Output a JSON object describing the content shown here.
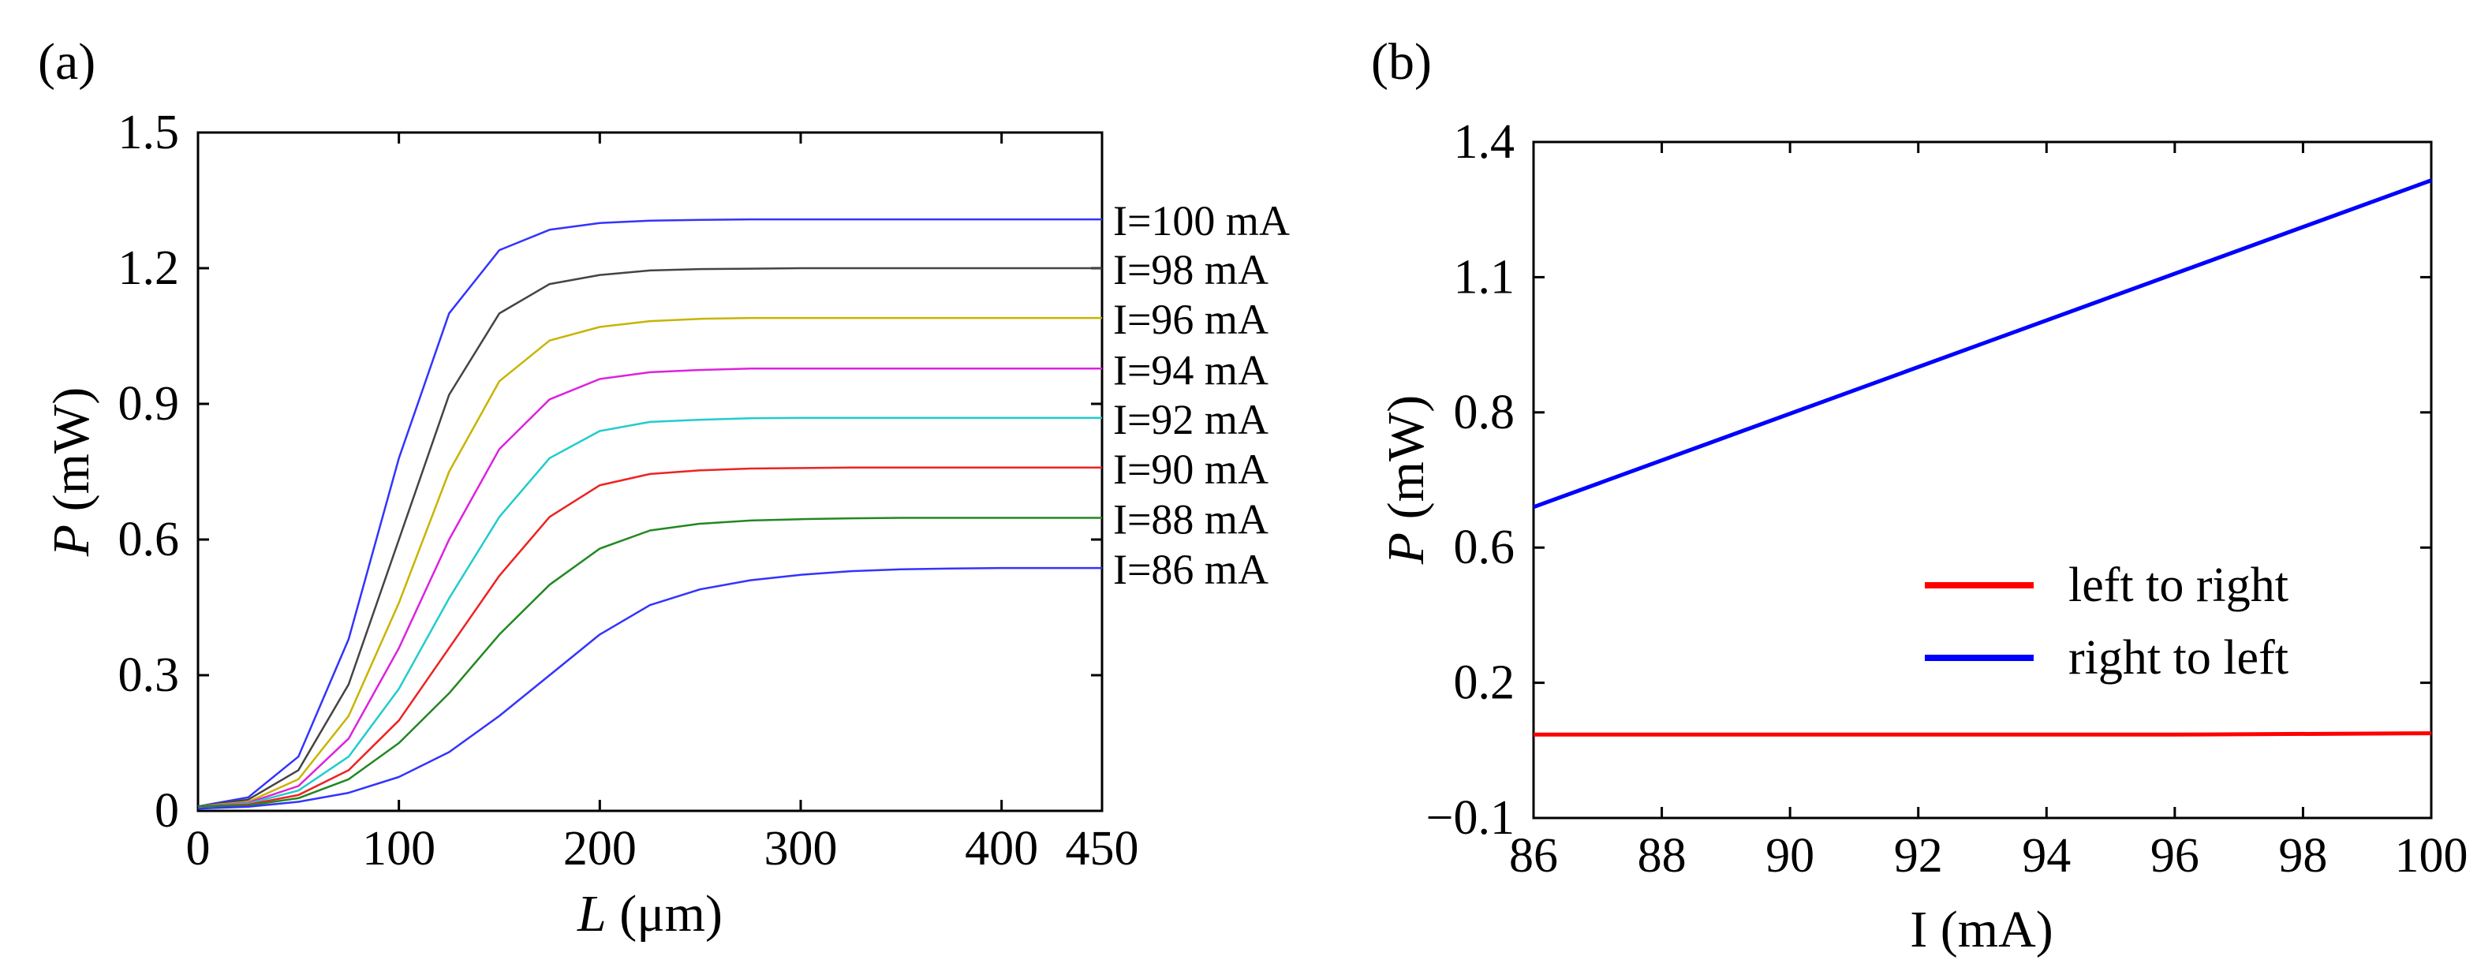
{
  "chart_data": [
    {
      "panel_label": "(a)",
      "type": "line",
      "title": "",
      "xlabel_var": "L",
      "xlabel_unit": " (μm)",
      "ylabel_var": "P",
      "ylabel_unit": " (mW)",
      "xlim": [
        0,
        450
      ],
      "ylim": [
        0,
        1.5
      ],
      "xticks": [
        0,
        100,
        200,
        300,
        400,
        450
      ],
      "xtick_labels": [
        "0",
        "100",
        "200",
        "300",
        "400",
        "450"
      ],
      "yticks": [
        0,
        0.3,
        0.6,
        0.9,
        1.2,
        1.5
      ],
      "ytick_labels": [
        "0",
        "0.3",
        "0.6",
        "0.9",
        "1.2",
        "1.5"
      ],
      "grid": false,
      "legend": "series labels at right end of each curve",
      "x": [
        0,
        25,
        50,
        75,
        100,
        125,
        150,
        175,
        200,
        225,
        250,
        275,
        300,
        325,
        350,
        375,
        400,
        425,
        450
      ],
      "series": [
        {
          "name": "I=100 mA",
          "color": "#3333ff",
          "values": [
            0.01,
            0.03,
            0.12,
            0.38,
            0.78,
            1.1,
            1.24,
            1.285,
            1.3,
            1.305,
            1.307,
            1.308,
            1.308,
            1.308,
            1.308,
            1.308,
            1.308,
            1.308,
            1.308
          ]
        },
        {
          "name": "I=98 mA",
          "color": "#444444",
          "values": [
            0.01,
            0.025,
            0.09,
            0.28,
            0.6,
            0.92,
            1.1,
            1.165,
            1.185,
            1.195,
            1.198,
            1.199,
            1.2,
            1.2,
            1.2,
            1.2,
            1.2,
            1.2,
            1.2
          ]
        },
        {
          "name": "I=96 mA",
          "color": "#c8b400",
          "values": [
            0.01,
            0.02,
            0.07,
            0.21,
            0.46,
            0.75,
            0.95,
            1.04,
            1.07,
            1.083,
            1.088,
            1.09,
            1.09,
            1.09,
            1.09,
            1.09,
            1.09,
            1.09,
            1.09
          ]
        },
        {
          "name": "I=94 mA",
          "color": "#dd22dd",
          "values": [
            0.01,
            0.018,
            0.055,
            0.16,
            0.36,
            0.6,
            0.8,
            0.91,
            0.955,
            0.97,
            0.975,
            0.978,
            0.978,
            0.978,
            0.978,
            0.978,
            0.978,
            0.978,
            0.978
          ]
        },
        {
          "name": "I=92 mA",
          "color": "#22cccc",
          "values": [
            0.01,
            0.016,
            0.045,
            0.12,
            0.27,
            0.47,
            0.65,
            0.78,
            0.84,
            0.86,
            0.865,
            0.868,
            0.869,
            0.869,
            0.869,
            0.869,
            0.869,
            0.869,
            0.869
          ]
        },
        {
          "name": "I=90 mA",
          "color": "#ee2222",
          "values": [
            0.01,
            0.014,
            0.035,
            0.09,
            0.2,
            0.36,
            0.52,
            0.65,
            0.72,
            0.745,
            0.753,
            0.757,
            0.758,
            0.759,
            0.759,
            0.759,
            0.759,
            0.759,
            0.759
          ]
        },
        {
          "name": "I=88 mA",
          "color": "#228822",
          "values": [
            0.01,
            0.012,
            0.028,
            0.07,
            0.15,
            0.26,
            0.39,
            0.5,
            0.58,
            0.62,
            0.635,
            0.642,
            0.645,
            0.647,
            0.648,
            0.648,
            0.648,
            0.648,
            0.648
          ]
        },
        {
          "name": "I=86 mA",
          "color": "#3333ff",
          "values": [
            0.005,
            0.009,
            0.02,
            0.04,
            0.075,
            0.13,
            0.21,
            0.3,
            0.39,
            0.455,
            0.49,
            0.51,
            0.522,
            0.53,
            0.534,
            0.536,
            0.537,
            0.537,
            0.537
          ]
        }
      ]
    },
    {
      "panel_label": "(b)",
      "type": "line",
      "title": "",
      "xlabel": "I (mA)",
      "ylabel_var": "P",
      "ylabel_unit": " (mW)",
      "xlim": [
        86,
        100
      ],
      "ylim": [
        -0.1,
        1.4
      ],
      "xticks": [
        86,
        88,
        90,
        92,
        94,
        96,
        98,
        100
      ],
      "xtick_labels": [
        "86",
        "88",
        "90",
        "92",
        "94",
        "96",
        "98",
        "100"
      ],
      "yticks": [
        -0.1,
        0.2,
        0.6,
        0.8,
        1.1,
        1.4
      ],
      "ytick_labels": [
        "−0.1",
        "0.2",
        "0.6",
        "0.8",
        "1.1",
        "1.4"
      ],
      "grid": false,
      "legend": "lower-right",
      "series": [
        {
          "name": "left to right",
          "color": "#ff0000",
          "x": [
            86,
            96,
            100
          ],
          "values": [
            0.085,
            0.085,
            0.088
          ]
        },
        {
          "name": "right to left",
          "color": "#0000ff",
          "x": [
            86,
            100
          ],
          "values": [
            0.59,
            1.315
          ]
        }
      ]
    }
  ]
}
